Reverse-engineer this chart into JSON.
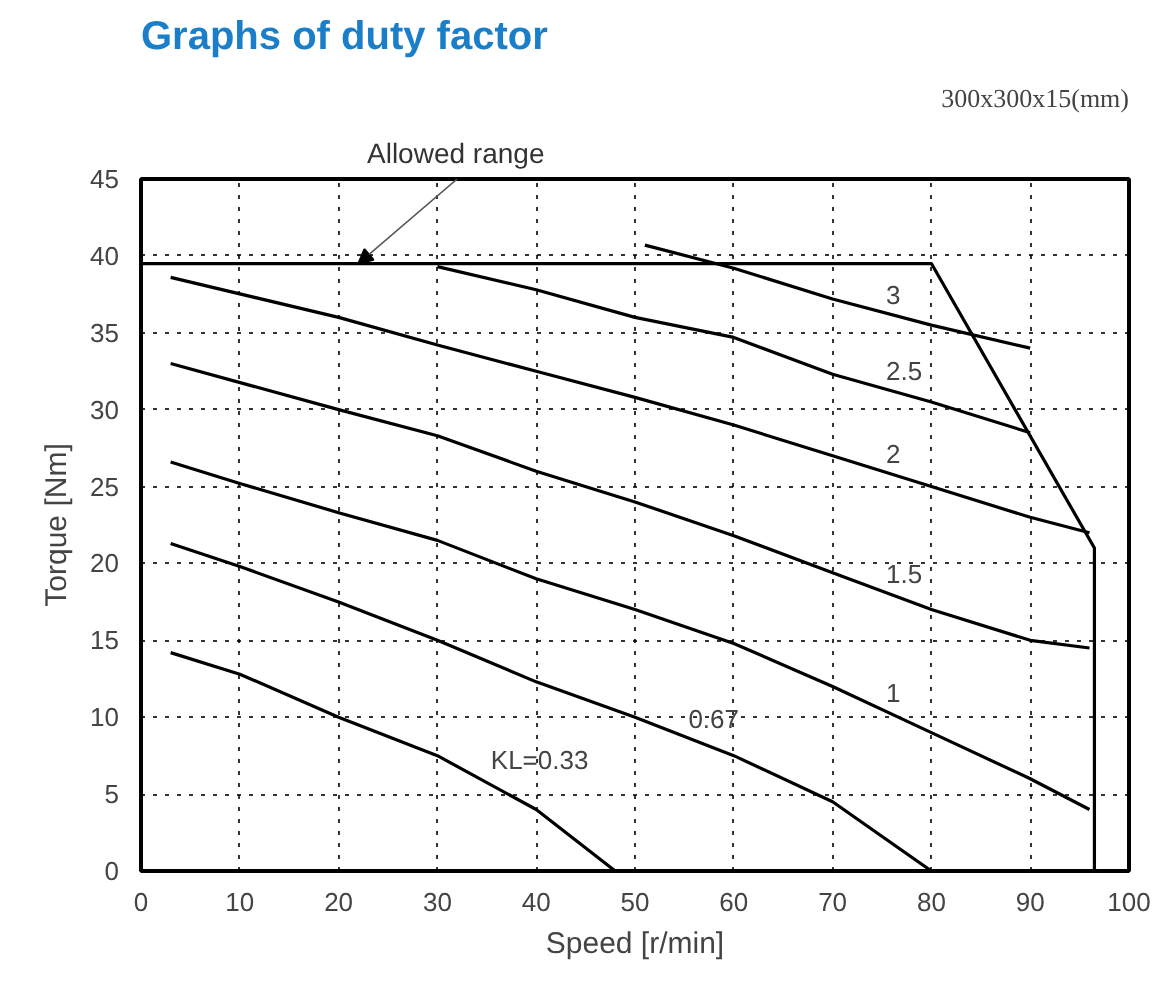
{
  "chart_data": {
    "type": "line",
    "title": "Graphs of duty factor",
    "xlabel": "Speed [r/min]",
    "ylabel": "Torque [Nm]",
    "xlim": [
      0,
      100
    ],
    "ylim": [
      0,
      45
    ],
    "xticks": [
      0,
      10,
      20,
      30,
      40,
      50,
      60,
      70,
      80,
      90,
      100
    ],
    "yticks": [
      0,
      5,
      10,
      15,
      20,
      25,
      30,
      35,
      40,
      45
    ],
    "grid": true,
    "marker": "none",
    "line_style": "solid",
    "annotations": [
      {
        "text": "Allowed range",
        "x": 22,
        "y": 39.5
      },
      "300x300x15(mm)"
    ],
    "series": [
      {
        "name": "KL=0.33",
        "color": "#000000",
        "x": [
          3,
          10,
          20,
          30,
          40,
          48
        ],
        "values": [
          14.2,
          12.8,
          10,
          7.5,
          4,
          0
        ]
      },
      {
        "name": "0.67",
        "color": "#000000",
        "x": [
          3,
          10,
          20,
          30,
          40,
          50,
          60,
          70,
          80
        ],
        "values": [
          21.3,
          19.8,
          17.5,
          15,
          12.3,
          10,
          7.5,
          4.5,
          0
        ]
      },
      {
        "name": "1",
        "color": "#000000",
        "x": [
          3,
          10,
          20,
          30,
          40,
          50,
          60,
          70,
          80,
          90,
          96
        ],
        "values": [
          26.6,
          25.2,
          23.3,
          21.5,
          19,
          17,
          14.8,
          12,
          9,
          6,
          4
        ]
      },
      {
        "name": "1.5",
        "color": "#000000",
        "x": [
          3,
          20,
          30,
          40,
          50,
          60,
          70,
          80,
          90,
          96
        ],
        "values": [
          33,
          30,
          28.3,
          26,
          24,
          21.8,
          19.4,
          17,
          15,
          14.5
        ]
      },
      {
        "name": "2",
        "color": "#000000",
        "x": [
          3,
          20,
          30,
          40,
          50,
          60,
          70,
          80,
          90,
          96
        ],
        "values": [
          38.6,
          36,
          34.2,
          32.5,
          30.8,
          29,
          27,
          25,
          23,
          22
        ]
      },
      {
        "name": "2.5",
        "color": "#000000",
        "x": [
          30,
          40,
          50,
          60,
          70,
          80,
          90
        ],
        "values": [
          39.3,
          37.8,
          36,
          34.7,
          32.3,
          30.5,
          28.5
        ]
      },
      {
        "name": "3",
        "color": "#000000",
        "x": [
          51,
          60,
          70,
          80,
          90
        ],
        "values": [
          40.7,
          39.2,
          37.2,
          35.5,
          34
        ]
      },
      {
        "color": "#000000",
        "x": [
          0,
          80,
          96.5,
          96.5
        ],
        "values": [
          39.5,
          39.5,
          21,
          0
        ]
      }
    ]
  }
}
